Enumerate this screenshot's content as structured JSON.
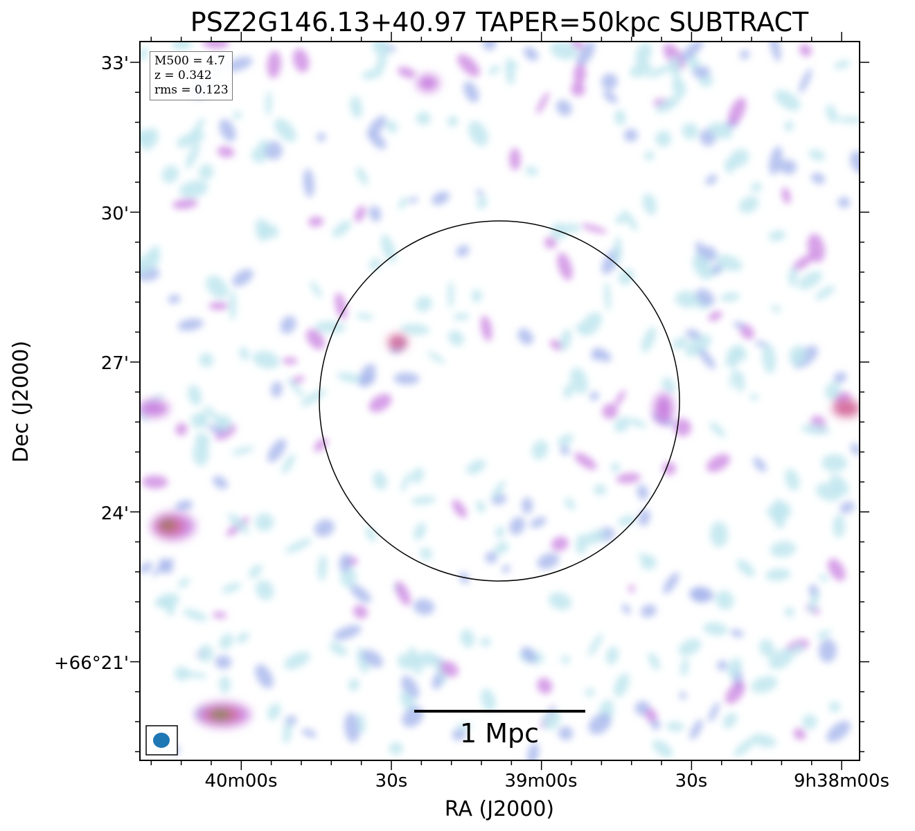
{
  "title": "PSZ2G146.13+40.97 TAPER=50kpc SUBTRACT",
  "info": {
    "m500": "M500 = 4.7",
    "z": "z = 0.342",
    "rms": "rms = 0.123"
  },
  "axes": {
    "xlabel": "RA (J2000)",
    "ylabel": "Dec (J2000)",
    "x_ticks": [
      "40m00s",
      "30s",
      "39m00s",
      "30s",
      "9h38m00s"
    ],
    "y_ticks": [
      "33'",
      "30'",
      "27'",
      "24'",
      "+66°21'"
    ]
  },
  "scalebar": {
    "label": "1 Mpc"
  },
  "colors": {
    "frame": "#000000",
    "beam": "#1f77b4",
    "noise_low": "#bfe6ee",
    "noise_mid": "#a7b7ec",
    "noise_high": "#c982e0",
    "peak": "#d46a9a",
    "core": "#7b8a3a"
  }
}
